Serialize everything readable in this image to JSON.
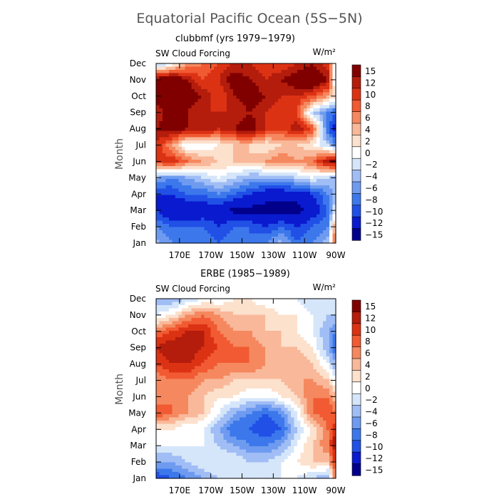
{
  "figure": {
    "title": "Equatorial Pacific Ocean (5S−5N)"
  },
  "colors": {
    "palette": [
      "#00008B",
      "#0A1ACF",
      "#2050E6",
      "#3C78EB",
      "#6E9BF0",
      "#A0BDF5",
      "#D6E6FA",
      "#FFFFFF",
      "#FCE1CD",
      "#F9B899",
      "#F5885F",
      "#F15A32",
      "#DC3214",
      "#B41C0C",
      "#800000"
    ],
    "frame": "#000000"
  },
  "chart_data": [
    {
      "type": "heatmap",
      "title": "clubbmf (yrs 1979−1979)",
      "left_label": "SW Cloud Forcing",
      "right_label": "W/m²",
      "xlabel": "",
      "ylabel": "Month",
      "x_ticks": [
        "170E",
        "170W",
        "150W",
        "130W",
        "110W",
        "90W"
      ],
      "x_tick_lon": [
        170,
        190,
        210,
        230,
        250,
        270
      ],
      "x_range": [
        155,
        270
      ],
      "y_ticks": [
        "Jan",
        "Feb",
        "Mar",
        "Apr",
        "May",
        "Jun",
        "Jul",
        "Aug",
        "Sep",
        "Oct",
        "Nov",
        "Dec"
      ],
      "levels": [
        -15,
        -12,
        -10,
        -8,
        -6,
        -4,
        -2,
        0,
        2,
        4,
        6,
        8,
        10,
        12,
        15
      ],
      "colorbar_labels": [
        "15",
        "12",
        "10",
        "8",
        "6",
        "4",
        "2",
        "0",
        "−2",
        "−4",
        "−6",
        "−8",
        "−10",
        "−12",
        "−15"
      ],
      "lon": [
        155,
        165,
        175,
        185,
        195,
        205,
        215,
        225,
        235,
        245,
        255,
        265,
        270
      ],
      "values": [
        [
          -5,
          -8,
          -8,
          -8,
          -10,
          -8,
          -10,
          -8,
          -5,
          -10,
          -8,
          -5,
          8
        ],
        [
          -8,
          -10,
          -10,
          -10,
          -12,
          -10,
          -10,
          -12,
          -10,
          -12,
          -10,
          -8,
          6
        ],
        [
          -12,
          -15,
          -15,
          -14,
          -14,
          -16,
          -16,
          -16,
          -16,
          -16,
          -14,
          -10,
          -2
        ],
        [
          -12,
          -12,
          -10,
          -10,
          -8,
          -10,
          -12,
          -14,
          -14,
          -14,
          -12,
          -8,
          -4
        ],
        [
          -6,
          -8,
          -6,
          -4,
          -2,
          -4,
          -6,
          -6,
          -6,
          -4,
          -2,
          -4,
          -6
        ],
        [
          8,
          10,
          6,
          4,
          2,
          2,
          2,
          4,
          6,
          4,
          6,
          12,
          14
        ],
        [
          10,
          4,
          -2,
          -2,
          0,
          2,
          2,
          0,
          2,
          2,
          0,
          -4,
          -8
        ],
        [
          12,
          14,
          12,
          12,
          10,
          12,
          14,
          10,
          8,
          12,
          8,
          -10,
          -14
        ],
        [
          10,
          14,
          12,
          10,
          10,
          10,
          12,
          10,
          8,
          8,
          -4,
          -8,
          -10
        ],
        [
          14,
          16,
          14,
          12,
          8,
          12,
          14,
          12,
          10,
          10,
          8,
          4,
          0
        ],
        [
          14,
          16,
          12,
          8,
          10,
          14,
          12,
          10,
          12,
          14,
          16,
          12,
          -4
        ],
        [
          -6,
          -2,
          4,
          6,
          8,
          10,
          10,
          8,
          8,
          10,
          12,
          8,
          -2
        ]
      ]
    },
    {
      "type": "heatmap",
      "title": "ERBE (1985−1989)",
      "left_label": "SW Cloud Forcing",
      "right_label": "W/m²",
      "xlabel": "",
      "ylabel": "Month",
      "x_ticks": [
        "170E",
        "170W",
        "150W",
        "130W",
        "110W",
        "90W"
      ],
      "x_tick_lon": [
        170,
        190,
        210,
        230,
        250,
        270
      ],
      "x_range": [
        155,
        270
      ],
      "y_ticks": [
        "Jan",
        "Feb",
        "Mar",
        "Apr",
        "May",
        "Jun",
        "Jul",
        "Aug",
        "Sep",
        "Oct",
        "Nov",
        "Dec"
      ],
      "levels": [
        -15,
        -12,
        -10,
        -8,
        -6,
        -4,
        -2,
        0,
        2,
        4,
        6,
        8,
        10,
        12,
        15
      ],
      "colorbar_labels": [
        "15",
        "12",
        "10",
        "8",
        "6",
        "4",
        "2",
        "0",
        "−2",
        "−4",
        "−6",
        "−8",
        "−10",
        "−12",
        "−15"
      ],
      "lon": [
        155,
        165,
        175,
        185,
        195,
        205,
        215,
        225,
        235,
        245,
        255,
        265,
        270
      ],
      "values": [
        [
          -12,
          -10,
          -8,
          -6,
          -4,
          -2,
          -2,
          -2,
          -2,
          -2,
          -4,
          -6,
          6
        ],
        [
          -6,
          -6,
          -4,
          -2,
          -2,
          -2,
          -4,
          -4,
          -2,
          0,
          2,
          2,
          10
        ],
        [
          -2,
          -2,
          -2,
          -2,
          -4,
          -6,
          -8,
          -8,
          -6,
          -2,
          2,
          6,
          12
        ],
        [
          0,
          0,
          -2,
          -2,
          -6,
          -10,
          -10,
          -12,
          -10,
          -4,
          0,
          6,
          10
        ],
        [
          8,
          6,
          4,
          2,
          -2,
          -6,
          -8,
          -10,
          -8,
          -2,
          6,
          8,
          6
        ],
        [
          4,
          6,
          4,
          2,
          0,
          0,
          -2,
          -2,
          0,
          2,
          6,
          6,
          2
        ],
        [
          4,
          6,
          6,
          4,
          4,
          2,
          2,
          2,
          2,
          4,
          4,
          2,
          -2
        ],
        [
          8,
          10,
          10,
          8,
          6,
          6,
          6,
          4,
          4,
          4,
          2,
          -2,
          -6
        ],
        [
          10,
          12,
          12,
          10,
          8,
          6,
          6,
          4,
          2,
          2,
          0,
          -6,
          -10
        ],
        [
          6,
          8,
          10,
          10,
          6,
          4,
          4,
          2,
          2,
          0,
          -2,
          -6,
          -8
        ],
        [
          -2,
          0,
          4,
          6,
          4,
          2,
          2,
          2,
          0,
          0,
          -2,
          -4,
          -4
        ],
        [
          -6,
          -6,
          -4,
          -2,
          -2,
          0,
          0,
          -2,
          -2,
          -2,
          -4,
          -2,
          -2
        ]
      ]
    }
  ]
}
